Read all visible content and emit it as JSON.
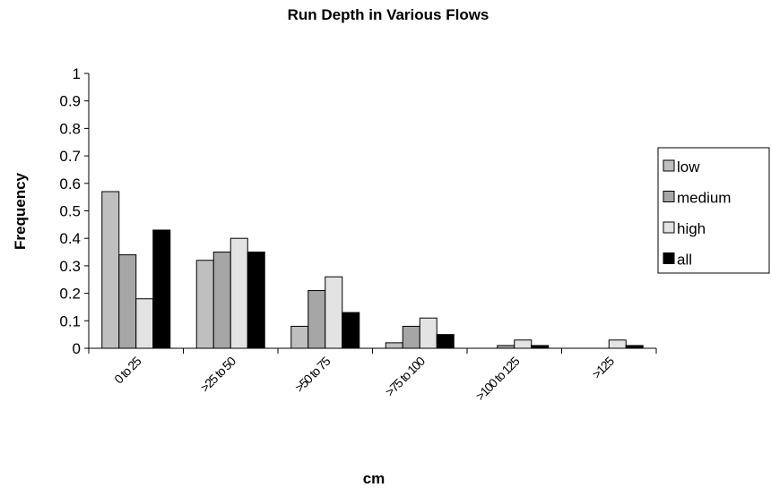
{
  "chart_data": {
    "type": "bar",
    "title": "Run Depth in Various Flows",
    "xlabel": "cm",
    "ylabel": "Frequency",
    "ylim": [
      0,
      1
    ],
    "yticks": [
      "0",
      "0.1",
      "0.2",
      "0.3",
      "0.4",
      "0.5",
      "0.6",
      "0.7",
      "0.8",
      "0.9",
      "1"
    ],
    "categories": [
      "0 to 25",
      ">25 to 50",
      ">50 to 75",
      ">75 to 100",
      ">100 to 125",
      ">125"
    ],
    "series": [
      {
        "name": "low",
        "color": "#bfbfbf",
        "values": [
          0.57,
          0.32,
          0.08,
          0.02,
          0.0,
          0.0
        ]
      },
      {
        "name": "medium",
        "color": "#a6a6a6",
        "values": [
          0.34,
          0.35,
          0.21,
          0.08,
          0.01,
          0.0
        ]
      },
      {
        "name": "high",
        "color": "#e3e3e3",
        "values": [
          0.18,
          0.4,
          0.26,
          0.11,
          0.03,
          0.03
        ]
      },
      {
        "name": "all",
        "color": "#000000",
        "values": [
          0.43,
          0.35,
          0.13,
          0.05,
          0.01,
          0.01
        ]
      }
    ],
    "grid": false,
    "legend_position": "right"
  }
}
